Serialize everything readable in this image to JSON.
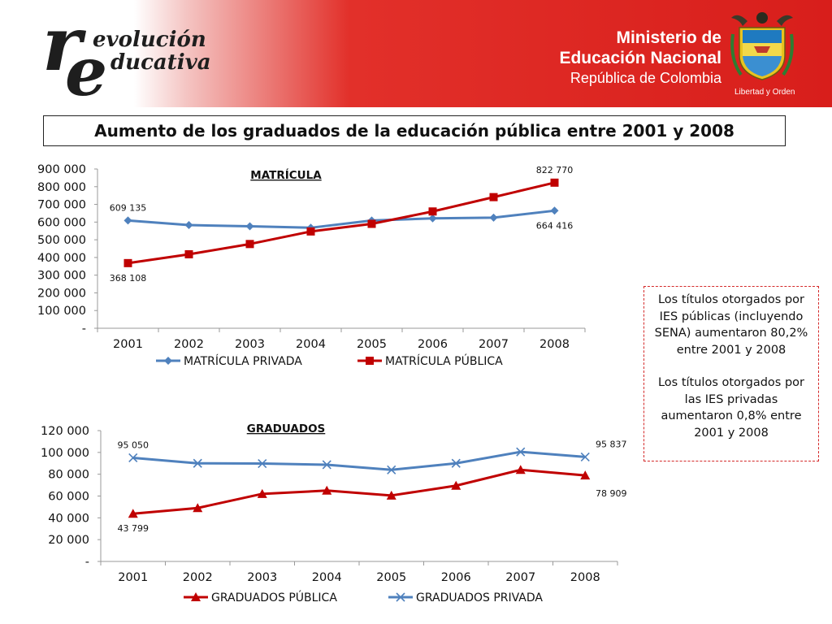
{
  "header": {
    "logo_r": "r",
    "logo_e": "e",
    "logo_line1": "evolución",
    "logo_line2": "ducativa",
    "ministry_line1": "Ministerio de",
    "ministry_line2": "Educación Nacional",
    "ministry_line3": "República de Colombia",
    "motto": "Libertad y Orden"
  },
  "page_title": "Aumento de los graduados de la educación pública entre 2001 y 2008",
  "note": {
    "paragraph1": "Los títulos otorgados por IES públicas (incluyendo SENA) aumentaron 80,2% entre 2001 y 2008",
    "paragraph2": "Los títulos otorgados por las IES privadas aumentaron 0,8% entre 2001 y 2008"
  },
  "colors": {
    "header_red": "#d81e1b",
    "blue_series": "#4f81bd",
    "red_series": "#c00000"
  },
  "chart_data": [
    {
      "type": "line",
      "title": "MATRÍCULA",
      "categories": [
        "2001",
        "2002",
        "2003",
        "2004",
        "2005",
        "2006",
        "2007",
        "2008"
      ],
      "ylim": [
        0,
        900000
      ],
      "y_ticks": [
        "-",
        "100 000",
        "200 000",
        "300 000",
        "400 000",
        "500 000",
        "600 000",
        "700 000",
        "800 000",
        "900 000"
      ],
      "legend_position": "bottom",
      "series": [
        {
          "name": "MATRÍCULA PRIVADA",
          "marker": "diamond",
          "color": "#4f81bd",
          "values": [
            609135,
            583000,
            576000,
            568000,
            609000,
            621000,
            625000,
            664416
          ]
        },
        {
          "name": "MATRÍCULA PÚBLICA",
          "marker": "square",
          "color": "#c00000",
          "values": [
            368108,
            418000,
            476000,
            547000,
            590000,
            660000,
            741000,
            822770
          ]
        }
      ],
      "data_labels": [
        {
          "series": 0,
          "index": 0,
          "text": "609 135",
          "pos": "above"
        },
        {
          "series": 0,
          "index": 7,
          "text": "664 416",
          "pos": "below"
        },
        {
          "series": 1,
          "index": 0,
          "text": "368 108",
          "pos": "below"
        },
        {
          "series": 1,
          "index": 7,
          "text": "822 770",
          "pos": "above"
        }
      ]
    },
    {
      "type": "line",
      "title": "GRADUADOS",
      "categories": [
        "2001",
        "2002",
        "2003",
        "2004",
        "2005",
        "2006",
        "2007",
        "2008"
      ],
      "ylim": [
        0,
        120000
      ],
      "y_ticks": [
        "-",
        "20 000",
        "40 000",
        "60 000",
        "80 000",
        "100 000",
        "120 000"
      ],
      "legend_position": "bottom",
      "series": [
        {
          "name": "GRADUADOS PÚBLICA",
          "marker": "triangle",
          "color": "#c00000",
          "values": [
            43799,
            49000,
            62000,
            65000,
            60500,
            69500,
            84000,
            78909
          ]
        },
        {
          "name": "GRADUADOS PRIVADA",
          "marker": "x",
          "color": "#4f81bd",
          "values": [
            95050,
            90000,
            89800,
            88700,
            84000,
            90000,
            100500,
            95837
          ]
        }
      ],
      "data_labels": [
        {
          "series": 1,
          "index": 0,
          "text": "95 050",
          "pos": "above"
        },
        {
          "series": 1,
          "index": 7,
          "text": "95 837",
          "pos": "above-right"
        },
        {
          "series": 0,
          "index": 0,
          "text": "43 799",
          "pos": "below"
        },
        {
          "series": 0,
          "index": 7,
          "text": "78 909",
          "pos": "below-right"
        }
      ]
    }
  ]
}
